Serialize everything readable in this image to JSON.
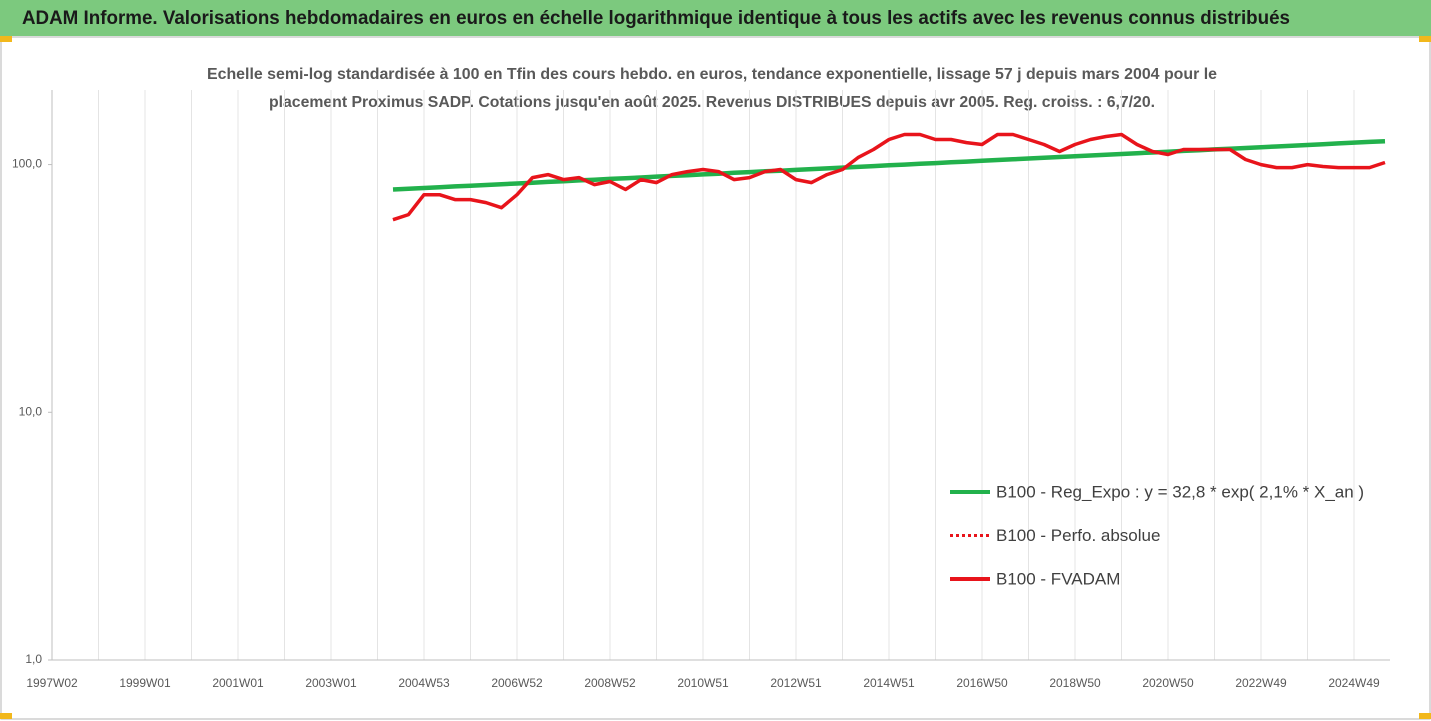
{
  "chart_data": {
    "type": "line",
    "title": "ADAM Informe. Valorisations hebdomadaires en euros en échelle logarithmique identique à tous les actifs avec les revenus connus distribués",
    "subtitle": [
      "Echelle semi-log standardisée à 100 en Tfin des cours hebdo. en euros, tendance exponentielle, lissage 57 j depuis mars 2004 pour le",
      "placement Proximus SADP. Cotations jusqu'en août 2025. Revenus DISTRIBUES depuis avr 2005. Reg. croiss. : 6,7/20."
    ],
    "categories": [
      "1997W02",
      null,
      null,
      null,
      null,
      null,
      "1999W01",
      null,
      null,
      null,
      null,
      null,
      "2001W01",
      null,
      null,
      null,
      null,
      null,
      "2003W01",
      null,
      null,
      null,
      null,
      null,
      "2004W53",
      null,
      null,
      null,
      null,
      null,
      "2006W52",
      null,
      null,
      null,
      null,
      null,
      "2008W52",
      null,
      null,
      null,
      null,
      null,
      "2010W51",
      null,
      null,
      null,
      null,
      null,
      "2012W51",
      null,
      null,
      null,
      null,
      null,
      "2014W51",
      null,
      null,
      null,
      null,
      null,
      "2016W50",
      null,
      null,
      null,
      null,
      null,
      "2018W50",
      null,
      null,
      null,
      null,
      null,
      "2020W50",
      null,
      null,
      null,
      null,
      null,
      "2022W49",
      null,
      null,
      null,
      null,
      null,
      "2024W49",
      null,
      null
    ],
    "series": [
      {
        "name": "B100 - Reg_Expo : y = 32,8 * exp( 2,1% *  X_an )",
        "color": "#22b14c",
        "style": "solid",
        "values": [
          null,
          null,
          null,
          null,
          null,
          null,
          null,
          null,
          null,
          null,
          null,
          null,
          null,
          null,
          null,
          null,
          null,
          null,
          null,
          null,
          null,
          null,
          79.3,
          79.9,
          80.4,
          81.0,
          81.6,
          82.1,
          82.7,
          83.3,
          83.9,
          84.5,
          85.1,
          85.7,
          86.3,
          86.9,
          87.5,
          88.1,
          88.7,
          89.4,
          90.0,
          90.6,
          91.3,
          91.9,
          92.6,
          93.2,
          93.9,
          94.5,
          95.2,
          95.9,
          96.5,
          97.2,
          97.9,
          98.6,
          99.3,
          100.0,
          100.7,
          101.4,
          102.1,
          102.8,
          103.6,
          104.3,
          105.0,
          105.8,
          106.5,
          107.3,
          108.0,
          108.8,
          109.5,
          110.3,
          111.1,
          111.9,
          112.7,
          113.5,
          114.3,
          115.1,
          115.9,
          116.7,
          117.5,
          118.3,
          119.2,
          120.0,
          120.9,
          121.7,
          122.6,
          123.4,
          124.3
        ]
      },
      {
        "name": "B100 - Perfo. absolue",
        "color": "#e8141b",
        "style": "dotted",
        "values": [
          null,
          null,
          null,
          null,
          null,
          null,
          null,
          null,
          null,
          null,
          null,
          null,
          null,
          null,
          null,
          null,
          null,
          null,
          null,
          null,
          null,
          null,
          59.9,
          62.8,
          75.6,
          75.6,
          72.2,
          72.2,
          70.2,
          67.0,
          75.6,
          88.6,
          91.1,
          87.0,
          88.6,
          83.0,
          85.4,
          79.3,
          87.0,
          84.6,
          91.1,
          93.7,
          95.5,
          93.7,
          87.0,
          88.6,
          93.7,
          95.5,
          87.0,
          84.6,
          91.1,
          95.5,
          106.7,
          115.0,
          126.2,
          132.2,
          132.2,
          126.2,
          126.2,
          122.7,
          120.5,
          132.2,
          132.2,
          126.2,
          120.5,
          112.9,
          120.5,
          126.2,
          129.8,
          132.2,
          120.5,
          112.9,
          109.8,
          115.0,
          115.0,
          115.0,
          115.0,
          104.8,
          100.0,
          97.2,
          97.2,
          100.0,
          98.2,
          97.2,
          97.2,
          97.2,
          101.9
        ]
      },
      {
        "name": "B100 - FVADAM",
        "color": "#e8141b",
        "style": "solid",
        "values": [
          null,
          null,
          null,
          null,
          null,
          null,
          null,
          null,
          null,
          null,
          null,
          null,
          null,
          null,
          null,
          null,
          null,
          null,
          null,
          null,
          null,
          null,
          59.9,
          62.8,
          75.6,
          75.6,
          72.2,
          72.2,
          70.2,
          67.0,
          75.6,
          88.6,
          91.1,
          87.0,
          88.6,
          83.0,
          85.4,
          79.3,
          87.0,
          84.6,
          91.1,
          93.7,
          95.5,
          93.7,
          87.0,
          88.6,
          93.7,
          95.5,
          87.0,
          84.6,
          91.1,
          95.5,
          106.7,
          115.0,
          126.2,
          132.2,
          132.2,
          126.2,
          126.2,
          122.7,
          120.5,
          132.2,
          132.2,
          126.2,
          120.5,
          112.9,
          120.5,
          126.2,
          129.8,
          132.2,
          120.5,
          112.9,
          109.8,
          115.0,
          115.0,
          115.0,
          115.0,
          104.8,
          100.0,
          97.2,
          97.2,
          100.0,
          98.2,
          97.2,
          97.2,
          97.2,
          101.9
        ]
      }
    ],
    "log_scale": true,
    "ylim": [
      1,
      200
    ],
    "yticks": [
      {
        "value": 1,
        "label": "1,0"
      },
      {
        "value": 10,
        "label": "10,0"
      },
      {
        "value": 100,
        "label": "100,0"
      }
    ],
    "grid": "x",
    "legend": "lower right"
  }
}
